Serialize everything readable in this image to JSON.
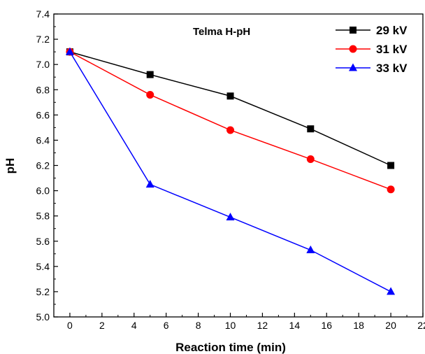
{
  "chart_data": {
    "type": "line",
    "annotation": "Telma H-pH",
    "xlabel": "Reaction time (min)",
    "ylabel": "pH",
    "xlim": [
      -1,
      22
    ],
    "ylim": [
      5.0,
      7.4
    ],
    "xticks": [
      0,
      2,
      4,
      6,
      8,
      10,
      12,
      14,
      16,
      18,
      20,
      22
    ],
    "yticks": [
      "5.0",
      "5.2",
      "5.4",
      "5.6",
      "5.8",
      "6.0",
      "6.2",
      "6.4",
      "6.6",
      "6.8",
      "7.0",
      "7.2",
      "7.4"
    ],
    "grid": false,
    "legend_position": "top-right",
    "x": [
      0,
      5,
      10,
      15,
      20
    ],
    "series": [
      {
        "name": "29 kV",
        "color": "#000000",
        "marker": "square",
        "values": [
          7.1,
          6.92,
          6.75,
          6.49,
          6.2
        ]
      },
      {
        "name": "31 kV",
        "color": "#ff0000",
        "marker": "circle",
        "values": [
          7.1,
          6.76,
          6.48,
          6.25,
          6.01
        ]
      },
      {
        "name": "33 kV",
        "color": "#0000ff",
        "marker": "triangle",
        "values": [
          7.1,
          6.05,
          5.79,
          5.53,
          5.2
        ]
      }
    ]
  }
}
